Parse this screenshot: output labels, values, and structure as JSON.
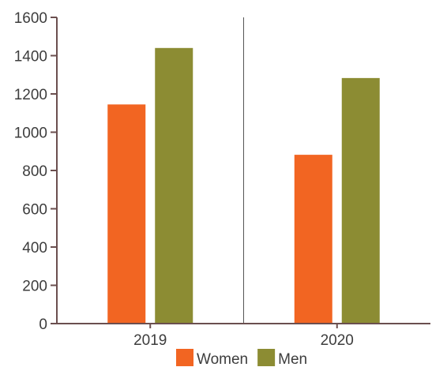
{
  "chart_data": {
    "type": "bar",
    "categories": [
      "2019",
      "2020"
    ],
    "series": [
      {
        "name": "Women",
        "color": "#f26522",
        "values": [
          1145,
          882
        ]
      },
      {
        "name": "Men",
        "color": "#8c8c33",
        "values": [
          1440,
          1283
        ]
      }
    ],
    "ylim": [
      0,
      1600
    ],
    "yticks": [
      0,
      200,
      400,
      600,
      800,
      1000,
      1200,
      1400,
      1600
    ],
    "legend_position": "bottom",
    "category_separators": true,
    "axis_color": "#6b4f4f",
    "text_color": "#3d3d3d"
  }
}
